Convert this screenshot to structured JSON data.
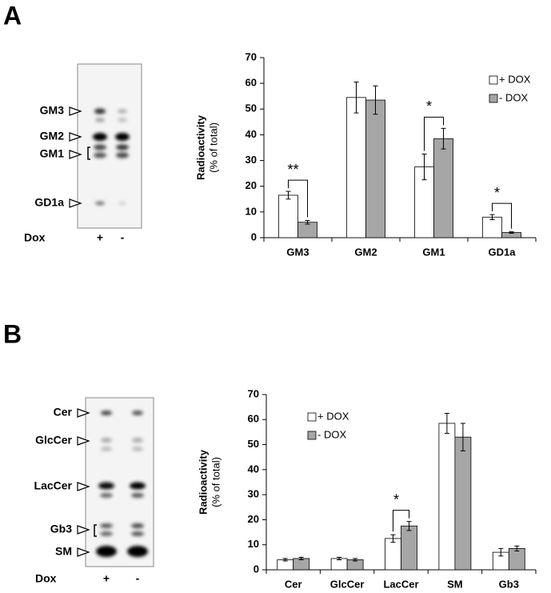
{
  "panels": [
    {
      "label": "A",
      "gel": {
        "bands": [
          "GM3",
          "GM2",
          "GM1",
          "GD1a"
        ],
        "lane_title": "Dox",
        "lanes": [
          "+",
          "-"
        ]
      }
    },
    {
      "label": "B",
      "gel": {
        "bands": [
          "Cer",
          "GlcCer",
          "LacCer",
          "Gb3",
          "SM"
        ],
        "lane_title": "Dox",
        "lanes": [
          "+",
          "-"
        ]
      }
    }
  ],
  "chart_data": [
    {
      "type": "bar",
      "ylabel": [
        "Radioactivity",
        "(% of total)"
      ],
      "categories": [
        "GM3",
        "GM2",
        "GM1",
        "GD1a"
      ],
      "series": [
        {
          "name": "+ DOX",
          "color": "#ffffff",
          "values": [
            16.5,
            54.5,
            27.5,
            8
          ],
          "errors": [
            1.5,
            6,
            5,
            1
          ]
        },
        {
          "name": "- DOX",
          "color": "#a6a6a6",
          "values": [
            6,
            53.5,
            38.5,
            2
          ],
          "errors": [
            0.7,
            5.5,
            4,
            0.3
          ]
        }
      ],
      "significance": [
        "**",
        null,
        "*",
        "*"
      ],
      "ylim": [
        0,
        70
      ],
      "yticks": [
        0,
        10,
        20,
        30,
        40,
        50,
        60,
        70
      ],
      "legend": "upper right"
    },
    {
      "type": "bar",
      "ylabel": [
        "Radioactivity",
        "(% of total)"
      ],
      "categories": [
        "Cer",
        "GlcCer",
        "LacCer",
        "SM",
        "Gb3"
      ],
      "series": [
        {
          "name": "+ DOX",
          "color": "#ffffff",
          "values": [
            4,
            4.5,
            12.5,
            58.5,
            7
          ],
          "errors": [
            0.5,
            0.5,
            1.5,
            4,
            1.5
          ]
        },
        {
          "name": "- DOX",
          "color": "#a6a6a6",
          "values": [
            4.5,
            4,
            17.5,
            53,
            8.5
          ],
          "errors": [
            0.5,
            0.5,
            1.8,
            5.5,
            1
          ]
        }
      ],
      "significance": [
        null,
        null,
        "*",
        null,
        null
      ],
      "ylim": [
        0,
        70
      ],
      "yticks": [
        0,
        10,
        20,
        30,
        40,
        50,
        60,
        70
      ],
      "legend": "upper left"
    }
  ]
}
